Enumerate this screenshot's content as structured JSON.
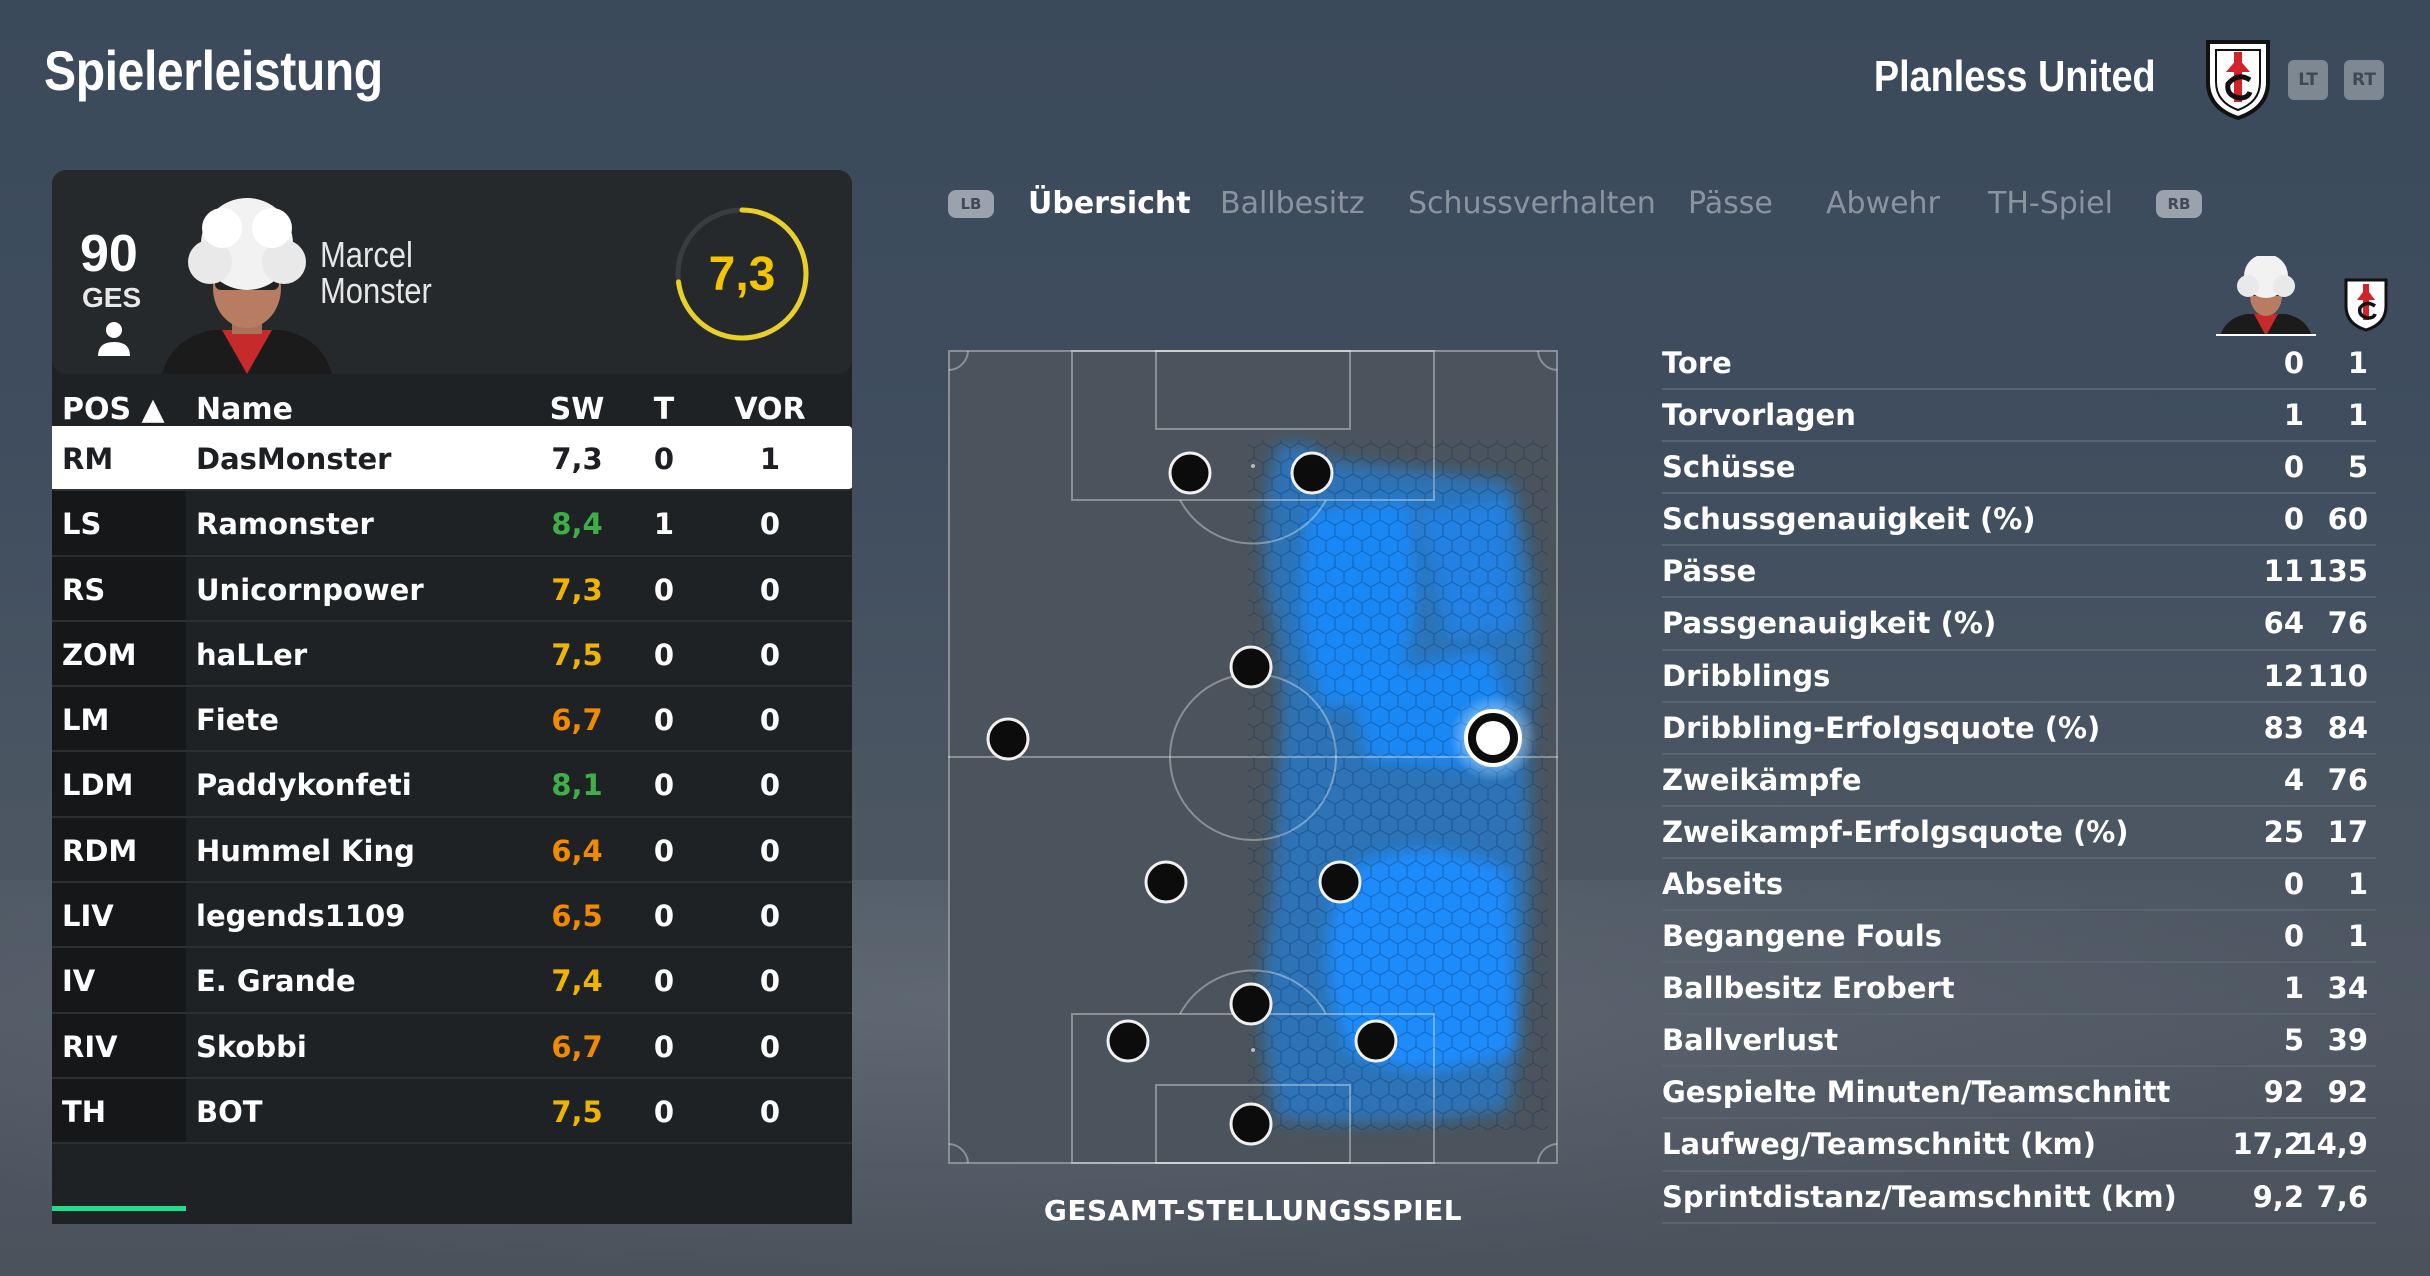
{
  "page_title": "Spielerleistung",
  "team": {
    "name": "Planless United",
    "crest_icon": "fulham-crest-icon"
  },
  "triggers": {
    "left": "LT",
    "right": "RT"
  },
  "player_card": {
    "overall": "90",
    "overall_label": "GES",
    "first_name": "Marcel",
    "last_name": "Monster",
    "match_rating": "7,3",
    "rating_fraction": 0.73
  },
  "table": {
    "headers": {
      "pos": "POS ▲",
      "name": "Name",
      "sw": "SW",
      "t": "T",
      "vor": "VOR"
    },
    "rows": [
      {
        "pos": "RM",
        "name": "DasMonster",
        "sw": "7,3",
        "sw_color": "#1d1f22",
        "t": "0",
        "vor": "1"
      },
      {
        "pos": "LS",
        "name": "Ramonster",
        "sw": "8,4",
        "sw_color": "#3fae49",
        "t": "1",
        "vor": "0"
      },
      {
        "pos": "RS",
        "name": "Unicornpower",
        "sw": "7,3",
        "sw_color": "#f0b400",
        "t": "0",
        "vor": "0"
      },
      {
        "pos": "ZOM",
        "name": "haLLer",
        "sw": "7,5",
        "sw_color": "#f0b400",
        "t": "0",
        "vor": "0"
      },
      {
        "pos": "LM",
        "name": "Fiete",
        "sw": "6,7",
        "sw_color": "#f08a00",
        "t": "0",
        "vor": "0"
      },
      {
        "pos": "LDM",
        "name": "Paddykonfeti",
        "sw": "8,1",
        "sw_color": "#3fae49",
        "t": "0",
        "vor": "0"
      },
      {
        "pos": "RDM",
        "name": "Hummel King",
        "sw": "6,4",
        "sw_color": "#f08a00",
        "t": "0",
        "vor": "0"
      },
      {
        "pos": "LIV",
        "name": "legends1109",
        "sw": "6,5",
        "sw_color": "#f08a00",
        "t": "0",
        "vor": "0"
      },
      {
        "pos": "IV",
        "name": "E. Grande",
        "sw": "7,4",
        "sw_color": "#f0b400",
        "t": "0",
        "vor": "0"
      },
      {
        "pos": "RIV",
        "name": "Skobbi",
        "sw": "6,7",
        "sw_color": "#f08a00",
        "t": "0",
        "vor": "0"
      },
      {
        "pos": "TH",
        "name": "BOT",
        "sw": "7,5",
        "sw_color": "#f0b400",
        "t": "0",
        "vor": "0"
      }
    ]
  },
  "tabs": {
    "lb": "LB",
    "rb": "RB",
    "items": [
      "Übersicht",
      "Ballbesitz",
      "Schussverhalten",
      "Pässe",
      "Abwehr",
      "TH-Spiel"
    ],
    "active": 0
  },
  "pitch": {
    "label": "GESAMT-STELLUNGSSPIEL"
  },
  "stats": [
    {
      "label": "Tore",
      "player": "0",
      "team": "1"
    },
    {
      "label": "Torvorlagen",
      "player": "1",
      "team": "1"
    },
    {
      "label": "Schüsse",
      "player": "0",
      "team": "5"
    },
    {
      "label": "Schussgenauigkeit (%)",
      "player": "0",
      "team": "60"
    },
    {
      "label": "Pässe",
      "player": "11",
      "team": "135"
    },
    {
      "label": "Passgenauigkeit (%)",
      "player": "64",
      "team": "76"
    },
    {
      "label": "Dribblings",
      "player": "12",
      "team": "110"
    },
    {
      "label": "Dribbling-Erfolgsquote (%)",
      "player": "83",
      "team": "84"
    },
    {
      "label": "Zweikämpfe",
      "player": "4",
      "team": "76"
    },
    {
      "label": "Zweikampf-Erfolgsquote (%)",
      "player": "25",
      "team": "17"
    },
    {
      "label": "Abseits",
      "player": "0",
      "team": "1"
    },
    {
      "label": "Begangene Fouls",
      "player": "0",
      "team": "1"
    },
    {
      "label": "Ballbesitz Erobert",
      "player": "1",
      "team": "34"
    },
    {
      "label": "Ballverlust",
      "player": "5",
      "team": "39"
    },
    {
      "label": "Gespielte Minuten/Teamschnitt",
      "player": "92",
      "team": "92"
    },
    {
      "label": "Laufweg/Teamschnitt (km)",
      "player": "17,2",
      "team": "14,9"
    },
    {
      "label": "Sprintdistanz/Teamschnitt (km)",
      "player": "9,2",
      "team": "7,6"
    }
  ],
  "colors": {
    "rating_ring": "#e8cf2a",
    "heat": "#1a8cff",
    "accent_underline": "#1fe08a"
  }
}
